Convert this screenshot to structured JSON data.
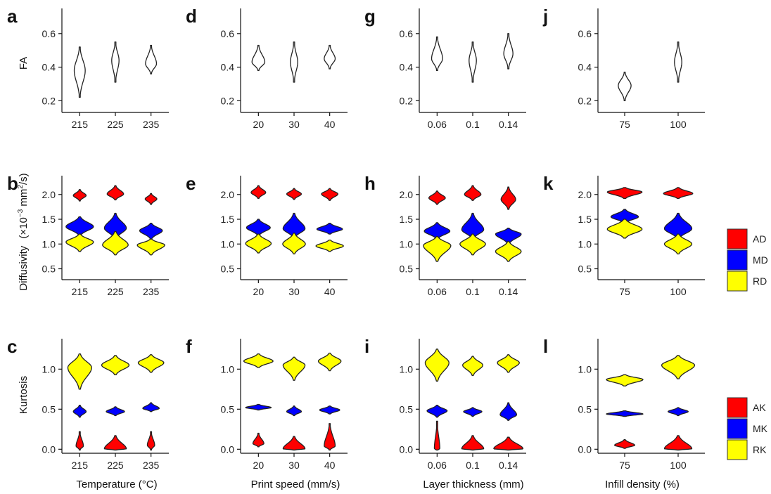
{
  "colors": {
    "AD": "#ff0000",
    "MD": "#0000ff",
    "RD": "#ffff00",
    "AK": "#ff0000",
    "MK": "#0000ff",
    "RK": "#ffff00",
    "FA": "#ffffff"
  },
  "row_labels": {
    "fa": "FA",
    "diffusivity": "Diffusivity",
    "diffusivity_unit": "(×10",
    "diffusivity_exp": "−3",
    "diffusivity_unit2": " mm",
    "diffusivity_sq": "2",
    "diffusivity_unit3": "/s)",
    "kurtosis": "Kurtosis"
  },
  "column_labels": [
    "Temperature (°C)",
    "Print speed (mm/s)",
    "Layer thickness (mm)",
    "Infill density (%)"
  ],
  "legend_diffusivity": [
    "AD",
    "MD",
    "RD"
  ],
  "legend_kurtosis": [
    "AK",
    "MK",
    "RK"
  ],
  "chart_data": [
    {
      "panel": "a",
      "type": "violin",
      "metric": "FA",
      "categories": [
        "215",
        "225",
        "235"
      ],
      "ylim": [
        0.13,
        0.75
      ],
      "yticks": [
        "0.2",
        "0.4",
        "0.6"
      ],
      "series": [
        {
          "name": "FA",
          "center": [
            0.38,
            0.44,
            0.42
          ],
          "min": [
            0.22,
            0.31,
            0.36
          ],
          "max": [
            0.52,
            0.55,
            0.53
          ],
          "width": [
            0.3,
            0.2,
            0.3
          ]
        }
      ]
    },
    {
      "panel": "d",
      "type": "violin",
      "metric": "FA",
      "categories": [
        "20",
        "30",
        "40"
      ],
      "ylim": [
        0.13,
        0.75
      ],
      "yticks": [
        "0.2",
        "0.4",
        "0.6"
      ],
      "series": [
        {
          "name": "FA",
          "center": [
            0.43,
            0.43,
            0.45
          ],
          "min": [
            0.38,
            0.31,
            0.39
          ],
          "max": [
            0.53,
            0.55,
            0.53
          ],
          "width": [
            0.35,
            0.2,
            0.3
          ]
        }
      ]
    },
    {
      "panel": "g",
      "type": "violin",
      "metric": "FA",
      "categories": [
        "0.06",
        "0.1",
        "0.14"
      ],
      "ylim": [
        0.13,
        0.75
      ],
      "yticks": [
        "0.2",
        "0.4",
        "0.6"
      ],
      "series": [
        {
          "name": "FA",
          "center": [
            0.45,
            0.44,
            0.48
          ],
          "min": [
            0.38,
            0.31,
            0.39
          ],
          "max": [
            0.58,
            0.55,
            0.6
          ],
          "width": [
            0.3,
            0.2,
            0.25
          ]
        }
      ]
    },
    {
      "panel": "j",
      "type": "violin",
      "metric": "FA",
      "categories": [
        "75",
        "100"
      ],
      "ylim": [
        0.13,
        0.75
      ],
      "yticks": [
        "0.2",
        "0.4",
        "0.6"
      ],
      "series": [
        {
          "name": "FA",
          "center": [
            0.29,
            0.43
          ],
          "min": [
            0.2,
            0.31
          ],
          "max": [
            0.37,
            0.55
          ],
          "width": [
            0.35,
            0.2
          ]
        }
      ]
    },
    {
      "panel": "b",
      "type": "violin",
      "metric": "Diffusivity",
      "categories": [
        "215",
        "225",
        "235"
      ],
      "ylim": [
        0.28,
        2.38
      ],
      "yticks": [
        "0.5",
        "1.0",
        "1.5",
        "2.0"
      ],
      "series": [
        {
          "name": "AD",
          "center": [
            1.98,
            2.01,
            1.91
          ],
          "min": [
            1.87,
            1.89,
            1.8
          ],
          "max": [
            2.1,
            2.18,
            2.02
          ],
          "width": [
            0.35,
            0.45,
            0.32
          ]
        },
        {
          "name": "MD",
          "center": [
            1.35,
            1.32,
            1.27
          ],
          "min": [
            1.17,
            1.1,
            1.1
          ],
          "max": [
            1.55,
            1.62,
            1.42
          ],
          "width": [
            0.75,
            0.6,
            0.62
          ]
        },
        {
          "name": "RD",
          "center": [
            1.04,
            0.98,
            0.98
          ],
          "min": [
            0.85,
            0.78,
            0.78
          ],
          "max": [
            1.2,
            1.25,
            1.1
          ],
          "width": [
            0.75,
            0.7,
            0.75
          ]
        }
      ]
    },
    {
      "panel": "e",
      "type": "violin",
      "metric": "Diffusivity",
      "categories": [
        "20",
        "30",
        "40"
      ],
      "ylim": [
        0.28,
        2.38
      ],
      "yticks": [
        "0.5",
        "1.0",
        "1.5",
        "2.0"
      ],
      "series": [
        {
          "name": "AD",
          "center": [
            2.04,
            2.01,
            2.01
          ],
          "min": [
            1.92,
            1.9,
            1.88
          ],
          "max": [
            2.18,
            2.12,
            2.12
          ],
          "width": [
            0.4,
            0.4,
            0.45
          ]
        },
        {
          "name": "MD",
          "center": [
            1.33,
            1.31,
            1.3
          ],
          "min": [
            1.17,
            1.12,
            1.2
          ],
          "max": [
            1.5,
            1.62,
            1.42
          ],
          "width": [
            0.65,
            0.6,
            0.7
          ]
        },
        {
          "name": "RD",
          "center": [
            1.01,
            1.0,
            0.96
          ],
          "min": [
            0.82,
            0.8,
            0.85
          ],
          "max": [
            1.2,
            1.22,
            1.08
          ],
          "width": [
            0.7,
            0.62,
            0.75
          ]
        }
      ]
    },
    {
      "panel": "h",
      "type": "violin",
      "metric": "Diffusivity",
      "categories": [
        "0.06",
        "0.1",
        "0.14"
      ],
      "ylim": [
        0.28,
        2.38
      ],
      "yticks": [
        "0.5",
        "1.0",
        "1.5",
        "2.0"
      ],
      "series": [
        {
          "name": "AD",
          "center": [
            1.93,
            2.0,
            1.9
          ],
          "min": [
            1.8,
            1.88,
            1.7
          ],
          "max": [
            2.07,
            2.18,
            2.15
          ],
          "width": [
            0.45,
            0.45,
            0.4
          ]
        },
        {
          "name": "MD",
          "center": [
            1.26,
            1.29,
            1.2
          ],
          "min": [
            1.1,
            1.1,
            1.0
          ],
          "max": [
            1.43,
            1.62,
            1.32
          ],
          "width": [
            0.7,
            0.6,
            0.7
          ]
        },
        {
          "name": "RD",
          "center": [
            0.97,
            1.0,
            0.85
          ],
          "min": [
            0.65,
            0.78,
            0.65
          ],
          "max": [
            1.15,
            1.2,
            1.05
          ],
          "width": [
            0.75,
            0.7,
            0.7
          ]
        }
      ]
    },
    {
      "panel": "k",
      "type": "violin",
      "metric": "Diffusivity",
      "categories": [
        "75",
        "100"
      ],
      "ylim": [
        0.28,
        2.38
      ],
      "yticks": [
        "0.5",
        "1.0",
        "1.5",
        "2.0"
      ],
      "series": [
        {
          "name": "AD",
          "center": [
            2.05,
            2.02
          ],
          "min": [
            1.92,
            1.92
          ],
          "max": [
            2.14,
            2.14
          ],
          "width": [
            0.95,
            0.8
          ]
        },
        {
          "name": "MD",
          "center": [
            1.55,
            1.31
          ],
          "min": [
            1.42,
            1.1
          ],
          "max": [
            1.7,
            1.62
          ],
          "width": [
            0.75,
            0.75
          ]
        },
        {
          "name": "RD",
          "center": [
            1.3,
            1.0
          ],
          "min": [
            1.12,
            0.8
          ],
          "max": [
            1.5,
            1.2
          ],
          "width": [
            0.95,
            0.75
          ]
        }
      ]
    },
    {
      "panel": "c",
      "type": "violin",
      "metric": "Kurtosis",
      "categories": [
        "215",
        "225",
        "235"
      ],
      "ylim": [
        -0.05,
        1.38
      ],
      "yticks": [
        "0.0",
        "0.5",
        "1.0"
      ],
      "series": [
        {
          "name": "AK",
          "center": [
            0.04,
            0.005,
            0.05
          ],
          "min": [
            -0.01,
            -0.01,
            -0.01
          ],
          "max": [
            0.22,
            0.17,
            0.22
          ],
          "width": [
            0.2,
            0.6,
            0.2
          ]
        },
        {
          "name": "MK",
          "center": [
            0.47,
            0.47,
            0.51
          ],
          "min": [
            0.4,
            0.42,
            0.47
          ],
          "max": [
            0.55,
            0.53,
            0.58
          ],
          "width": [
            0.35,
            0.5,
            0.45
          ]
        },
        {
          "name": "RK",
          "center": [
            1.02,
            1.05,
            1.08
          ],
          "min": [
            0.75,
            0.93,
            0.96
          ],
          "max": [
            1.19,
            1.17,
            1.18
          ],
          "width": [
            0.65,
            0.75,
            0.7
          ]
        }
      ]
    },
    {
      "panel": "f",
      "type": "violin",
      "metric": "Kurtosis",
      "categories": [
        "20",
        "30",
        "40"
      ],
      "ylim": [
        -0.05,
        1.38
      ],
      "yticks": [
        "0.0",
        "0.5",
        "1.0"
      ],
      "series": [
        {
          "name": "AK",
          "center": [
            0.07,
            0.005,
            0.04
          ],
          "min": [
            0.03,
            -0.01,
            -0.01
          ],
          "max": [
            0.2,
            0.16,
            0.32
          ],
          "width": [
            0.3,
            0.6,
            0.3
          ]
        },
        {
          "name": "MK",
          "center": [
            0.52,
            0.47,
            0.49
          ],
          "min": [
            0.49,
            0.42,
            0.44
          ],
          "max": [
            0.56,
            0.54,
            0.54
          ],
          "width": [
            0.7,
            0.4,
            0.55
          ]
        },
        {
          "name": "RK",
          "center": [
            1.1,
            1.05,
            1.1
          ],
          "min": [
            1.02,
            0.86,
            0.98
          ],
          "max": [
            1.19,
            1.15,
            1.2
          ],
          "width": [
            0.8,
            0.6,
            0.62
          ]
        }
      ]
    },
    {
      "panel": "i",
      "type": "violin",
      "metric": "Kurtosis",
      "categories": [
        "0.06",
        "0.1",
        "0.14"
      ],
      "ylim": [
        -0.05,
        1.38
      ],
      "yticks": [
        "0.0",
        "0.5",
        "1.0"
      ],
      "series": [
        {
          "name": "AK",
          "center": [
            0.005,
            0.005,
            0.005
          ],
          "min": [
            -0.01,
            -0.01,
            -0.01
          ],
          "max": [
            0.35,
            0.17,
            0.15
          ],
          "width": [
            0.15,
            0.6,
            0.8
          ]
        },
        {
          "name": "MK",
          "center": [
            0.48,
            0.47,
            0.43
          ],
          "min": [
            0.4,
            0.41,
            0.36
          ],
          "max": [
            0.55,
            0.52,
            0.58
          ],
          "width": [
            0.55,
            0.5,
            0.45
          ]
        },
        {
          "name": "RK",
          "center": [
            1.08,
            1.05,
            1.08
          ],
          "min": [
            0.85,
            0.92,
            0.96
          ],
          "max": [
            1.25,
            1.16,
            1.18
          ],
          "width": [
            0.65,
            0.55,
            0.6
          ]
        }
      ]
    },
    {
      "panel": "l",
      "type": "violin",
      "metric": "Kurtosis",
      "categories": [
        "75",
        "100"
      ],
      "ylim": [
        -0.05,
        1.38
      ],
      "yticks": [
        "0.0",
        "0.5",
        "1.0"
      ],
      "series": [
        {
          "name": "AK",
          "center": [
            0.05,
            0.005
          ],
          "min": [
            0.01,
            -0.01
          ],
          "max": [
            0.12,
            0.17
          ],
          "width": [
            0.55,
            0.75
          ]
        },
        {
          "name": "MK",
          "center": [
            0.44,
            0.47
          ],
          "min": [
            0.41,
            0.42
          ],
          "max": [
            0.48,
            0.52
          ],
          "width": [
            1.0,
            0.55
          ]
        },
        {
          "name": "RK",
          "center": [
            0.87,
            1.05
          ],
          "min": [
            0.79,
            0.88
          ],
          "max": [
            0.93,
            1.17
          ],
          "width": [
            1.0,
            0.9
          ]
        }
      ]
    }
  ]
}
